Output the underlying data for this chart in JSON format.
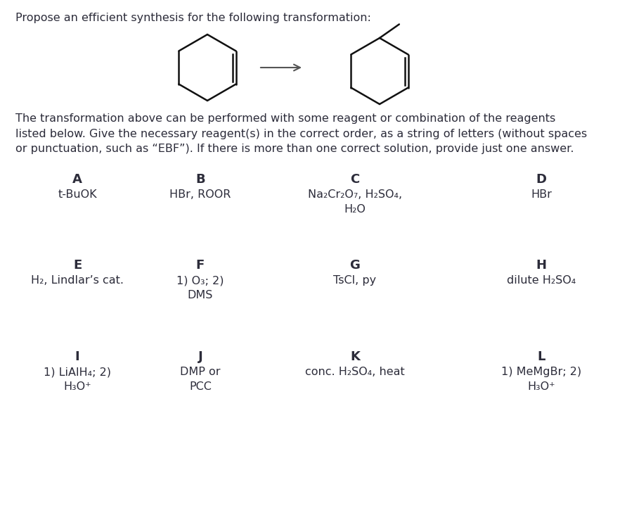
{
  "bg_color": "#ffffff",
  "title": "Propose an efficient synthesis for the following transformation:",
  "paragraph": "The transformation above can be performed with some reagent or combination of the reagents\nlisted below. Give the necessary reagent(s) in the correct order, as a string of letters (without spaces\nor punctuation, such as “EBF”). If there is more than one correct solution, provide just one answer.",
  "reagents": [
    {
      "letter": "A",
      "text": "t-BuOK",
      "col": 0
    },
    {
      "letter": "B",
      "text": "HBr, ROOR",
      "col": 1
    },
    {
      "letter": "C",
      "text": "Na₂Cr₂O₇, H₂SO₄,\nH₂O",
      "col": 2
    },
    {
      "letter": "D",
      "text": "HBr",
      "col": 3
    },
    {
      "letter": "E",
      "text": "H₂, Lindlar’s cat.",
      "col": 0
    },
    {
      "letter": "F",
      "text": "1) O₃; 2)\nDMS",
      "col": 1
    },
    {
      "letter": "G",
      "text": "TsCl, py",
      "col": 2
    },
    {
      "letter": "H",
      "text": "dilute H₂SO₄",
      "col": 3
    },
    {
      "letter": "I",
      "text": "1) LiAlH₄; 2)\nH₃O⁺",
      "col": 0
    },
    {
      "letter": "J",
      "text": "DMP or\nPCC",
      "col": 1
    },
    {
      "letter": "K",
      "text": "conc. H₂SO₄, heat",
      "col": 2
    },
    {
      "letter": "L",
      "text": "1) MeMgBr; 2)\nH₃O⁺",
      "col": 3
    }
  ],
  "text_color": "#2c2c3a",
  "font_size_title": 11.5,
  "font_size_para": 11.5,
  "font_size_letter": 13,
  "font_size_reagent": 11.5,
  "mol_line_color": "#111111",
  "mol_linewidth": 1.8
}
